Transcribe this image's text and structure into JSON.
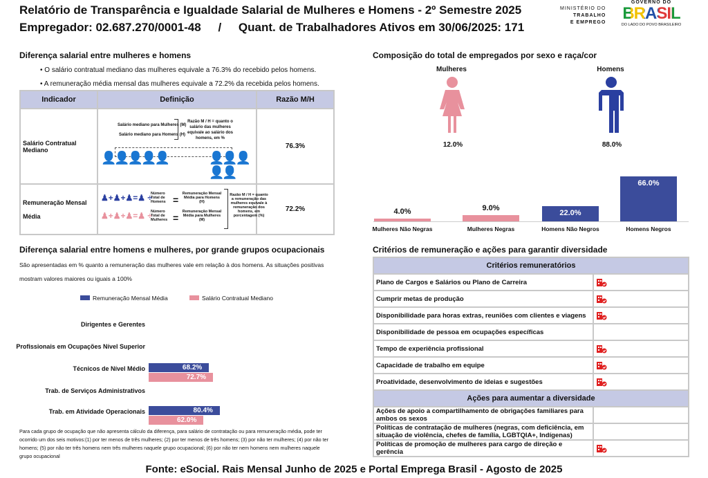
{
  "header": {
    "title": "Relatório de Transparência e Igualdade Salarial de Mulheres e Homens - 2º Semestre 2025",
    "employer": "Empregador: 02.687.270/0001-48",
    "sep": "/",
    "workers": "Quant. de Trabalhadores Ativos em 30/06/2025: 171",
    "logo_ministry": [
      "MINISTÉRIO DO",
      "TRABALHO",
      "E EMPREGO"
    ],
    "logo_gov": "GOVERNO DO",
    "logo_brasil": "BRASIL",
    "logo_tagline": "DO LADO DO POVO BRASILEIRO"
  },
  "salary_gap": {
    "title": "Diferença salarial entre mulheres e homens",
    "bullets": [
      "• O salário contratual mediano das mulheres equivale a 76.3% do recebido pelos homens.",
      "• A remuneração média mensal das mulheres equivale a 72.2% da recebida pelos homens."
    ],
    "headers": [
      "Indicador",
      "Definição",
      "Razão M/H"
    ],
    "rows": [
      {
        "indicator": "Salário Contratual Mediano",
        "value": "76.3%",
        "def": {
          "l1": "Salário mediano para Mulheres (M)",
          "l2": "Salário mediano para Homens (H)",
          "ratio": "Razão M / H = quanto o salário das mulheres equivale ao salário dos homens, em %"
        }
      },
      {
        "indicator": "Remuneração Mensal Média",
        "value": "72.2%",
        "def": {
          "n1": "Número Total de Homens",
          "r1": "Remuneração Mensal Média para Homens (H)",
          "n2": "Número Total de Mulheres",
          "r2": "Remuneração Mensal Média para Mulheres (M)",
          "ratio": "Razão M / H = quanto a remuneração das mulheres equivale à remuneração dos homens, em porcentagem (%)"
        }
      }
    ]
  },
  "composition": {
    "title": "Composição do total de empregados por sexo e raça/cor",
    "women_label": "Mulheres",
    "men_label": "Homens",
    "women_pct": "12.0%",
    "men_pct": "88.0%"
  },
  "chart_data": [
    {
      "type": "bar",
      "title": "Composição do total de empregados por sexo e raça/cor",
      "categories": [
        "Mulheres Não Negras",
        "Mulheres Negras",
        "Homens Não Negros",
        "Homens Negros"
      ],
      "values": [
        4.0,
        9.0,
        22.0,
        66.0
      ],
      "labels": [
        "4.0%",
        "9.0%",
        "22.0%",
        "66.0%"
      ],
      "colors": [
        "#e8919d",
        "#e8919d",
        "#3b4c9b",
        "#3b4c9b"
      ],
      "ylim": [
        0,
        66
      ]
    },
    {
      "type": "bar",
      "orientation": "horizontal",
      "title": "Diferença salarial entre homens e mulheres, por grande grupos ocupacionais",
      "categories": [
        "Dirigentes e Gerentes",
        "Profissionais em Ocupações Nível Superior",
        "Técnicos de Nível Médio",
        "Trab. de Serviços Administrativos",
        "Trab. em Atividade Operacionais"
      ],
      "series": [
        {
          "name": "Remuneração Mensal Média",
          "color": "#3b4c9b",
          "values": [
            null,
            null,
            68.2,
            null,
            80.4
          ],
          "labels": [
            "",
            "",
            "68.2%",
            "",
            "80.4%"
          ]
        },
        {
          "name": "Salário Contratual Mediano",
          "color": "#e8919d",
          "values": [
            null,
            null,
            72.7,
            null,
            62.0
          ],
          "labels": [
            "",
            "",
            "72.7%",
            "",
            "62.0%"
          ]
        }
      ],
      "legend": "top"
    }
  ],
  "groups": {
    "title": "Diferença salarial entre homens e mulheres, por grande grupos ocupacionais",
    "desc1": "São apresentadas em % quanto a remuneração das mulheres vale em relação à dos homens. As situações positivas",
    "desc2": "mostram valores maiores ou iguais a 100%",
    "footnote": "Para cada grupo de ocupação que não apresenta cálculo da diferença, para salário de contratação ou para remuneração média, pode ter ocorrido um dos seis motivos:(1) por ter menos de três mulheres; (2) por ter menos de três homens; (3) por não ter mulheres; (4) por não ter homens; (5) por não ter três homens nem três mulheres naquele grupo ocupacional; (6) por não ter nem homens nem mulheres naquele grupo ocupacional"
  },
  "criteria": {
    "title": "Critérios de remuneração e ações para garantir diversidade",
    "header1": "Critérios remuneratórios",
    "items1": [
      {
        "label": "Plano de Cargos e Salários ou Plano de Carreira",
        "check": true
      },
      {
        "label": "Cumprir metas de produção",
        "check": true
      },
      {
        "label": "Disponibilidade para horas extras, reuniões com clientes e viagens",
        "check": true
      },
      {
        "label": "Disponibilidade de pessoa em ocupações específicas",
        "check": false
      },
      {
        "label": "Tempo de experiência profissional",
        "check": true
      },
      {
        "label": "Capacidade de trabalho em equipe",
        "check": true
      },
      {
        "label": "Proatividade, desenvolvimento de ideias e sugestões",
        "check": true
      }
    ],
    "header2": "Ações para aumentar a diversidade",
    "items2": [
      {
        "label": "Ações de apoio a compartilhamento de obrigações familiares para ambos os sexos",
        "check": false
      },
      {
        "label": "Políticas de contratação de mulheres (negras, com deficiência, em situação de violência, chefes de família, LGBTQIA+, Indígenas)",
        "check": false
      },
      {
        "label": "Políticas de promoção de mulheres para cargo de direção e gerência",
        "check": true
      }
    ]
  },
  "footer": "Fonte: eSocial. Rais Mensal Junho de 2025 e Portal Emprega Brasil - Agosto de 2025"
}
